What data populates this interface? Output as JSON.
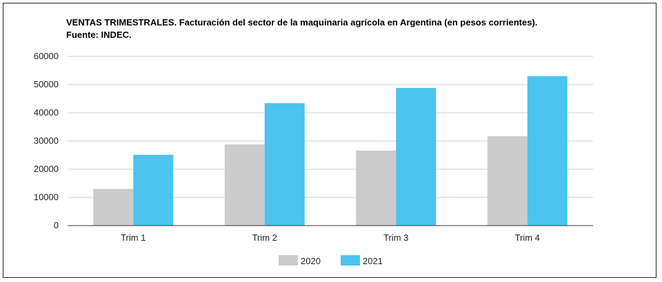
{
  "chart_data": {
    "type": "bar",
    "title": "VENTAS TRIMESTRALES. Facturación del sector de la maquinaria agrícola en Argentina (en pesos corrientes).",
    "subtitle": "Fuente: INDEC.",
    "categories": [
      "Trim 1",
      "Trim 2",
      "Trim 3",
      "Trim 4"
    ],
    "series": [
      {
        "name": "2020",
        "color": "#cccccc",
        "values": [
          13000,
          28800,
          26600,
          31700
        ]
      },
      {
        "name": "2021",
        "color": "#4dc3f0",
        "values": [
          25100,
          43400,
          48800,
          53000
        ]
      }
    ],
    "yticks": [
      "0",
      "10000",
      "20000",
      "30000",
      "40000",
      "50000",
      "60000"
    ],
    "ylim": [
      0,
      60000
    ],
    "xlabel": "",
    "ylabel": "",
    "grid": true,
    "legend_position": "bottom"
  }
}
